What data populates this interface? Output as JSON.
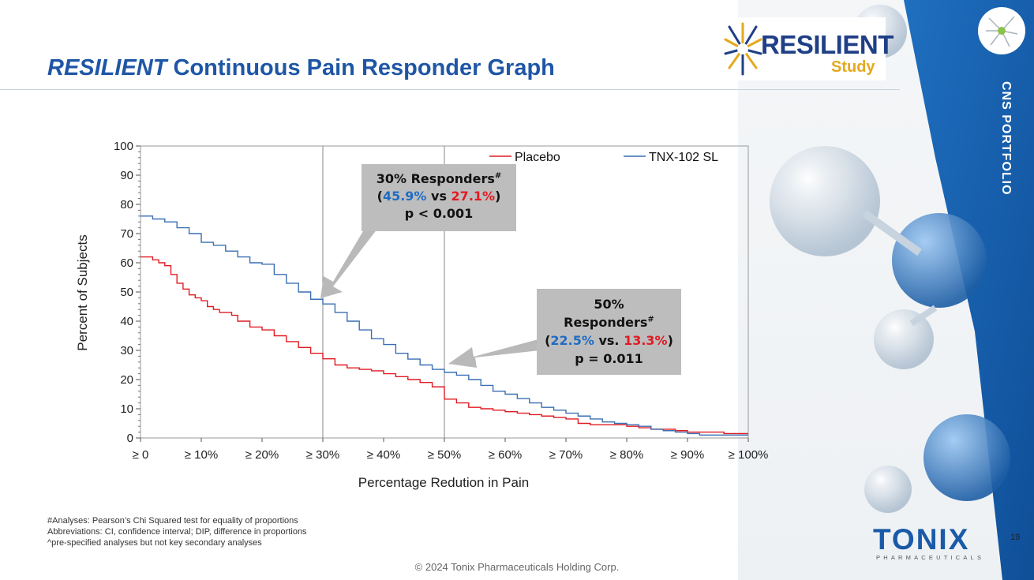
{
  "slide": {
    "title_italic": "RESILIENT",
    "title_rest": " Continuous Pain Responder Graph",
    "logo_word": "RESILIENT",
    "logo_sub": "Study",
    "portfolio_label": "CNS PORTFOLIO",
    "page_number": "19",
    "company_logo": "TONIX",
    "company_logo_sub": "PHARMACEUTICALS",
    "copyright": "© 2024 Tonix Pharmaceuticals Holding Corp.",
    "footnotes": [
      "#Analyses: Pearson’s Chi Squared test for equality of proportions",
      "Abbreviations: CI, confidence interval; DIP, difference in proportions",
      "^pre-specified analyses but not key secondary analyses"
    ]
  },
  "callouts": {
    "c1": {
      "line1": "30% Responders",
      "sup": "#",
      "val_a": "45.9%",
      "vs": " vs ",
      "val_b": "27.1%",
      "p": "p < 0.001"
    },
    "c2": {
      "line1": "50%",
      "line2": "Responders",
      "sup": "#",
      "val_a": "22.5%",
      "vs": " vs. ",
      "val_b": "13.3%",
      "p": "p = 0.011"
    }
  },
  "colors": {
    "title": "#1f56a6",
    "placebo": "#e11b22",
    "tnx": "#3a6fb3",
    "callout_bg": "#bdbdbd",
    "brand_blue": "#1a5aa8",
    "gold": "#e3a91f"
  },
  "chart_data": {
    "type": "line",
    "title": "",
    "xlabel": "Percentage Redution in Pain",
    "ylabel": "Percent of Subjects",
    "xlim": [
      0,
      100
    ],
    "ylim": [
      0,
      100
    ],
    "x_ticks": [
      0,
      10,
      20,
      30,
      40,
      50,
      60,
      70,
      80,
      90,
      100
    ],
    "x_tick_labels": [
      "≥ 0",
      "≥ 10%",
      "≥ 20%",
      "≥ 30%",
      "≥ 40%",
      "≥ 50%",
      "≥ 60%",
      "≥ 70%",
      "≥ 80%",
      "≥ 90%",
      "≥ 100%"
    ],
    "y_ticks": [
      0,
      10,
      20,
      30,
      40,
      50,
      60,
      70,
      80,
      90,
      100
    ],
    "y_tick_labels": [
      "0",
      "10",
      "20",
      "30",
      "40",
      "50",
      "60",
      "70",
      "80",
      "90",
      "100"
    ],
    "reference_lines_x": [
      30,
      50
    ],
    "legend": "top-right inside",
    "series": [
      {
        "name": "Placebo",
        "color": "#e11b22",
        "x": [
          0,
          2,
          3,
          4,
          5,
          6,
          7,
          8,
          9,
          10,
          11,
          12,
          13,
          14,
          15,
          16,
          18,
          20,
          22,
          24,
          26,
          28,
          30,
          32,
          34,
          36,
          38,
          40,
          42,
          44,
          46,
          48,
          50,
          52,
          54,
          56,
          58,
          60,
          62,
          64,
          66,
          68,
          70,
          72,
          74,
          76,
          78,
          80,
          82,
          84,
          86,
          88,
          90,
          92,
          94,
          96,
          98,
          100
        ],
        "y": [
          62,
          61,
          60,
          59,
          56,
          53,
          51,
          49,
          48,
          47,
          45,
          44,
          43,
          43,
          42,
          40,
          38,
          37,
          35,
          33,
          31,
          29,
          27.1,
          25,
          24,
          23.5,
          23,
          22,
          21,
          20,
          19,
          17.5,
          13.3,
          12,
          10.5,
          10,
          9.5,
          9,
          8.5,
          8,
          7.5,
          7,
          6.5,
          5,
          4.5,
          4.5,
          4.5,
          4,
          3.5,
          3,
          3,
          2.5,
          2,
          2,
          2,
          1.5,
          1.5,
          1.5
        ]
      },
      {
        "name": "TNX-102  SL",
        "color": "#3a6fb3",
        "x": [
          0,
          2,
          4,
          6,
          8,
          10,
          12,
          14,
          16,
          18,
          20,
          22,
          24,
          26,
          28,
          30,
          32,
          34,
          36,
          38,
          40,
          42,
          44,
          46,
          48,
          50,
          52,
          54,
          56,
          58,
          60,
          62,
          64,
          66,
          68,
          70,
          72,
          74,
          76,
          78,
          80,
          82,
          84,
          86,
          88,
          90,
          92,
          94,
          96,
          98,
          100
        ],
        "y": [
          76,
          75,
          74,
          72,
          70,
          67,
          66,
          64,
          62,
          60,
          59.5,
          56,
          53,
          50,
          47.5,
          45.9,
          43,
          40,
          37,
          34,
          32,
          29,
          27,
          25,
          23.5,
          22.5,
          21.5,
          20,
          18,
          16,
          15,
          13.5,
          12,
          10.5,
          9.5,
          8.5,
          7.5,
          6.5,
          5.5,
          5,
          4.5,
          4,
          3,
          2.5,
          2,
          1.5,
          1,
          1,
          1,
          1,
          1
        ]
      }
    ],
    "annotations": [
      "30% Responders# (45.9% vs 27.1%) p < 0.001",
      "50% Responders# (22.5% vs. 13.3%) p = 0.011"
    ]
  }
}
